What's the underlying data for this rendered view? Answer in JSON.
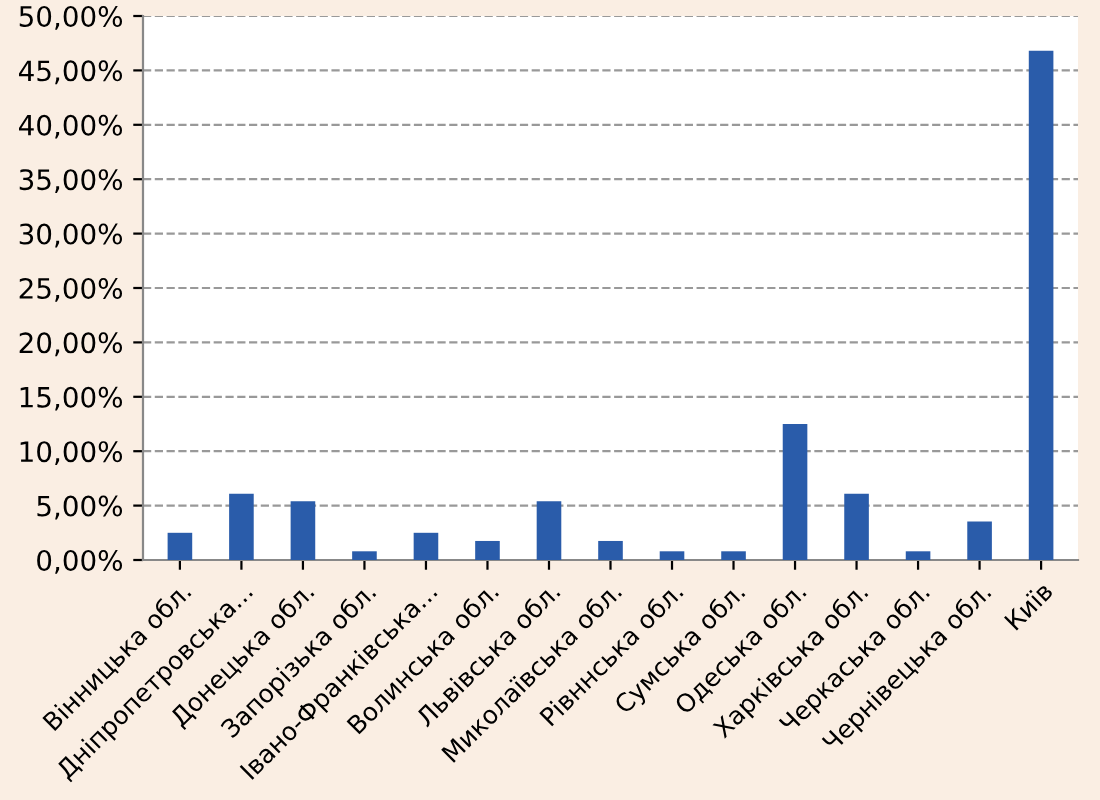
{
  "chart_data": {
    "type": "bar",
    "categories": [
      "Вінницька обл.",
      "Дніпропетровська...",
      "Донецька обл.",
      "Запорізька обл.",
      "Івано-Франківська...",
      "Волинська обл.",
      "Львівська обл.",
      "Миколаївська обл.",
      "Рівннська обл.",
      "Сумська обл.",
      "Одеська обл.",
      "Харківська обл.",
      "Черкаська обл.",
      "Чернівецька обл.",
      "Київ"
    ],
    "values": [
      2.5,
      6.1,
      5.4,
      0.8,
      2.5,
      1.75,
      5.4,
      1.75,
      0.8,
      0.8,
      12.5,
      6.1,
      0.8,
      3.55,
      46.8
    ],
    "color": "#2a5caa",
    "ylim": [
      0,
      50
    ],
    "yticks": [
      {
        "value": 0,
        "label": "0,00%"
      },
      {
        "value": 5,
        "label": "5,00%"
      },
      {
        "value": 10,
        "label": "10,00%"
      },
      {
        "value": 15,
        "label": "15,00%"
      },
      {
        "value": 20,
        "label": "20,00%"
      },
      {
        "value": 25,
        "label": "25,00%"
      },
      {
        "value": 30,
        "label": "30,00%"
      },
      {
        "value": 35,
        "label": "35,00%"
      },
      {
        "value": 40,
        "label": "40,00%"
      },
      {
        "value": 45,
        "label": "45,00%"
      },
      {
        "value": 50,
        "label": "50,00%"
      }
    ],
    "grid": "y"
  }
}
